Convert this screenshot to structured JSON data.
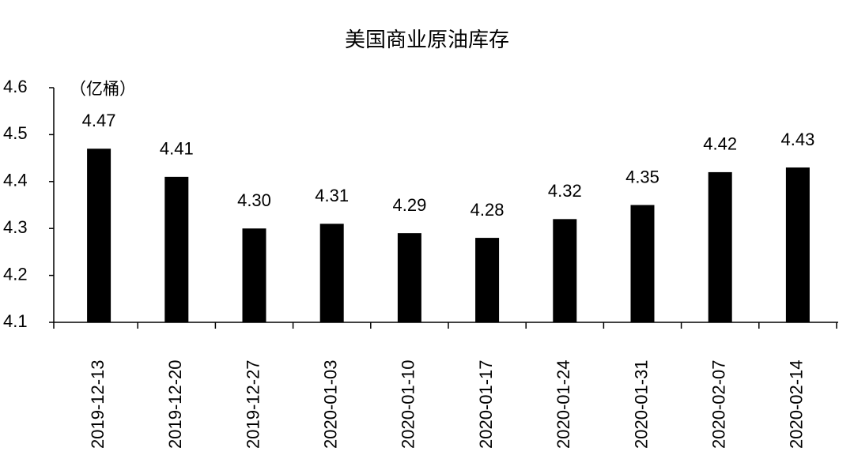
{
  "chart_data": {
    "type": "bar",
    "title": "美国商业原油库存",
    "y_unit": "（亿桶）",
    "categories": [
      "2019-12-13",
      "2019-12-20",
      "2019-12-27",
      "2020-01-03",
      "2020-01-10",
      "2020-01-17",
      "2020-01-24",
      "2020-01-31",
      "2020-02-07",
      "2020-02-14"
    ],
    "values": [
      4.47,
      4.41,
      4.3,
      4.31,
      4.29,
      4.28,
      4.32,
      4.35,
      4.42,
      4.43
    ],
    "value_labels": [
      "4.47",
      "4.41",
      "4.30",
      "4.31",
      "4.29",
      "4.28",
      "4.32",
      "4.35",
      "4.42",
      "4.43"
    ],
    "color": "#000000",
    "ylim": [
      4.1,
      4.6
    ],
    "yticks": [
      4.1,
      4.2,
      4.3,
      4.4,
      4.5,
      4.6
    ],
    "grid": false
  }
}
